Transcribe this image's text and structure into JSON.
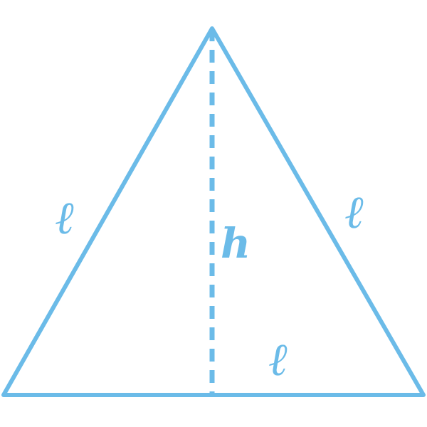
{
  "diagram": {
    "stroke_color": "#6bbbe8",
    "labels": {
      "left_side": "ℓ",
      "right_side": "ℓ",
      "base_side": "ℓ",
      "height": "h"
    }
  }
}
